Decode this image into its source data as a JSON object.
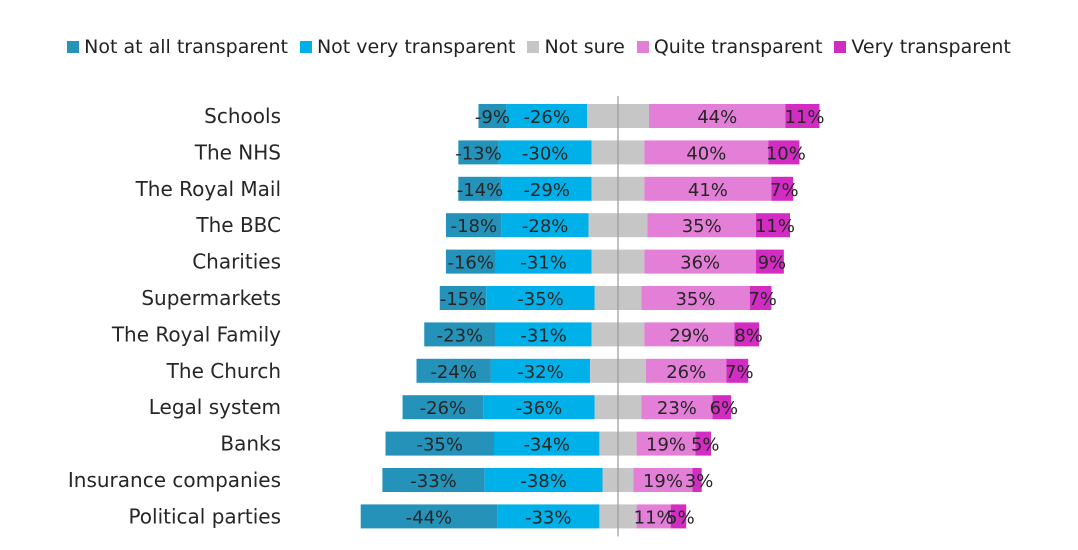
{
  "chart_data": {
    "type": "bar",
    "subtype": "diverging-stacked-bar",
    "title": "",
    "xlabel": "",
    "ylabel": "",
    "legend_position": "top",
    "series": [
      {
        "name": "Not at all transparent",
        "color": "#2492b9"
      },
      {
        "name": "Not very transparent",
        "color": "#00b0e8"
      },
      {
        "name": "Not sure",
        "color": "#c6c6c6"
      },
      {
        "name": "Quite transparent",
        "color": "#e47fd7"
      },
      {
        "name": "Very transparent",
        "color": "#d22cc3"
      }
    ],
    "categories": [
      "Schools",
      "The NHS",
      "The Royal Mail",
      "The BBC",
      "Charities",
      "Supermarkets",
      "The Royal Family",
      "The Church",
      "Legal system",
      "Banks",
      "Insurance companies",
      "Political parties"
    ],
    "not_at_all": [
      -9,
      -13,
      -14,
      -18,
      -16,
      -15,
      -23,
      -24,
      -26,
      -35,
      -33,
      -44
    ],
    "not_very": [
      -26,
      -30,
      -29,
      -28,
      -31,
      -35,
      -31,
      -32,
      -36,
      -34,
      -38,
      -33
    ],
    "not_sure": [
      20,
      17,
      17,
      19,
      17,
      15,
      17,
      18,
      15,
      12,
      10,
      12
    ],
    "quite": [
      44,
      40,
      41,
      35,
      36,
      35,
      29,
      26,
      23,
      19,
      19,
      11
    ],
    "very": [
      11,
      10,
      7,
      11,
      9,
      7,
      8,
      7,
      6,
      5,
      3,
      5
    ],
    "labels": {
      "not_at_all": [
        "-9%",
        "-13%",
        "-14%",
        "-18%",
        "-16%",
        "-15%",
        "-23%",
        "-24%",
        "-26%",
        "-35%",
        "-33%",
        "-44%"
      ],
      "not_very": [
        "-26%",
        "-30%",
        "-29%",
        "-28%",
        "-31%",
        "-35%",
        "-31%",
        "-32%",
        "-36%",
        "-34%",
        "-38%",
        "-33%"
      ],
      "quite": [
        "44%",
        "40%",
        "41%",
        "35%",
        "36%",
        "35%",
        "29%",
        "26%",
        "23%",
        "19%",
        "19%",
        "11%"
      ],
      "very": [
        "11%",
        "10%",
        "7%",
        "11%",
        "9%",
        "7%",
        "8%",
        "7%",
        "6%",
        "5%",
        "3%",
        "5%"
      ]
    }
  }
}
